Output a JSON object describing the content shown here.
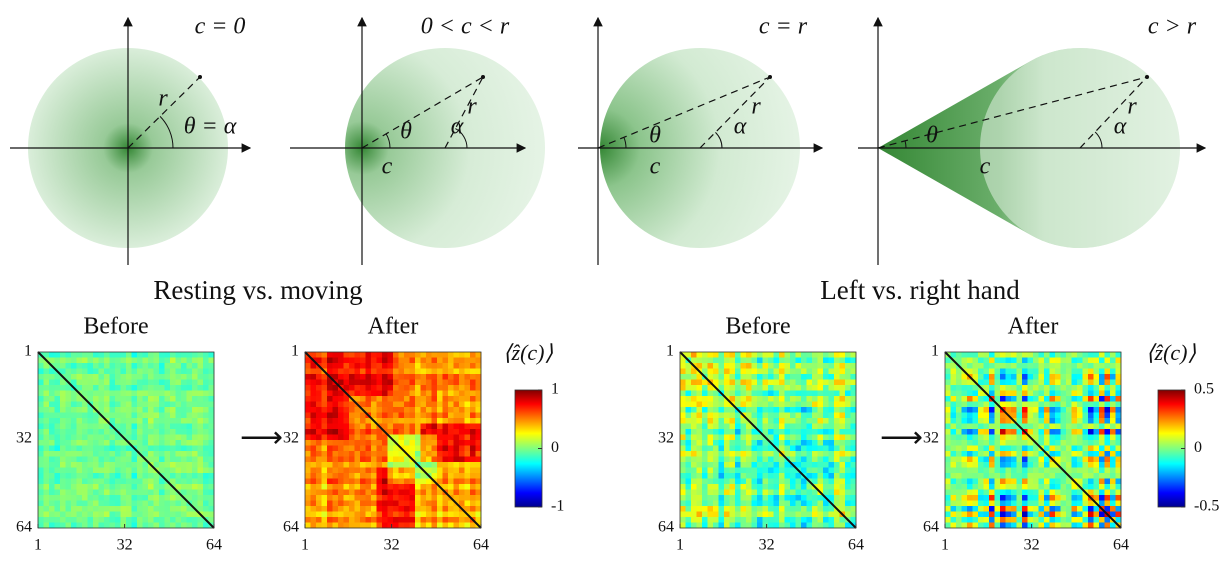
{
  "panels": [
    {
      "title": "c = 0",
      "labels": [
        "r",
        "θ = α"
      ]
    },
    {
      "title": "0 < c < r",
      "labels": [
        "r",
        "θ",
        "α",
        "c"
      ]
    },
    {
      "title": "c = r",
      "labels": [
        "r",
        "θ",
        "α",
        "c"
      ]
    },
    {
      "title": "c > r",
      "labels": [
        "r",
        "θ",
        "α",
        "c"
      ]
    }
  ],
  "groups": [
    {
      "title": "Resting vs. moving",
      "maps": [
        "Before",
        "After"
      ],
      "colorbar_label": "⟨ẑ(c)⟩",
      "colorbar_ticks": [
        1,
        0,
        -1
      ]
    },
    {
      "title": "Left vs. right hand",
      "maps": [
        "Before",
        "After"
      ],
      "colorbar_label": "⟨ẑ(c)⟩",
      "colorbar_ticks": [
        0.5,
        0,
        -0.5
      ]
    }
  ],
  "axis_ticks": [
    1,
    32,
    64
  ],
  "arrow": "⟶"
}
